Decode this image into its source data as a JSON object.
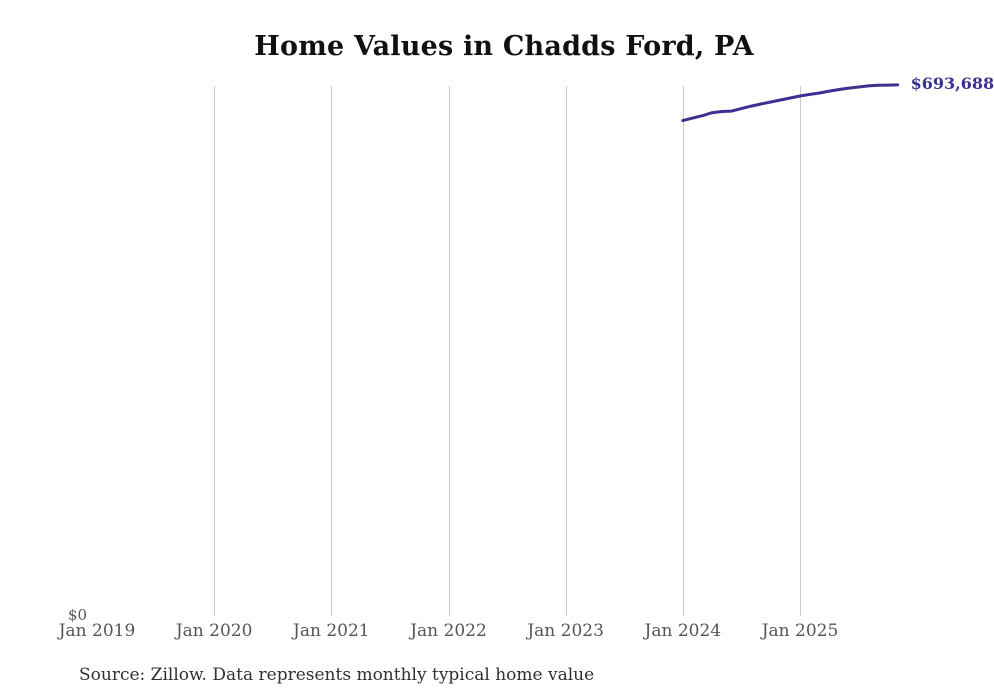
{
  "page": {
    "source_note": "Source: Zillow. Data represents monthly typical home value"
  },
  "chart_data": {
    "type": "line",
    "title": "Home Values in Chadds Ford, PA",
    "series_name": "Monthly typical home value",
    "x": [
      "Jan 2024",
      "Feb 2024",
      "Mar 2024",
      "Apr 2024",
      "May 2024",
      "Jun 2024",
      "Jul 2024",
      "Aug 2024",
      "Sep 2024",
      "Oct 2024",
      "Nov 2024",
      "Dec 2024",
      "Jan 2025",
      "Feb 2025",
      "Mar 2025",
      "Apr 2025",
      "May 2025",
      "Jun 2025",
      "Jul 2025",
      "Aug 2025",
      "Sep 2025",
      "Oct 2025",
      "Nov 2025"
    ],
    "values": [
      647200,
      650400,
      653600,
      657500,
      659000,
      659600,
      662800,
      666100,
      668800,
      671400,
      674000,
      676600,
      679200,
      681200,
      683100,
      685600,
      687600,
      689500,
      690900,
      692300,
      693100,
      693400,
      693688
    ],
    "end_label": "$693,688",
    "x_axis": {
      "tick_labels": [
        "Jan 2019",
        "Jan 2020",
        "Jan 2021",
        "Jan 2022",
        "Jan 2023",
        "Jan 2024",
        "Jan 2025"
      ],
      "first_tick_month": "Jan 2019"
    },
    "y_axis": {
      "zero_label": "$0",
      "min": 0,
      "max": 700000
    },
    "grid": "vertical-only",
    "legend": "none",
    "colors": {
      "line": "#3a3191",
      "end_label": "#3a3191",
      "gridline": "#c9c9c9",
      "axis_text": "#555555",
      "title_text": "#111111",
      "source_text": "#303030"
    }
  }
}
